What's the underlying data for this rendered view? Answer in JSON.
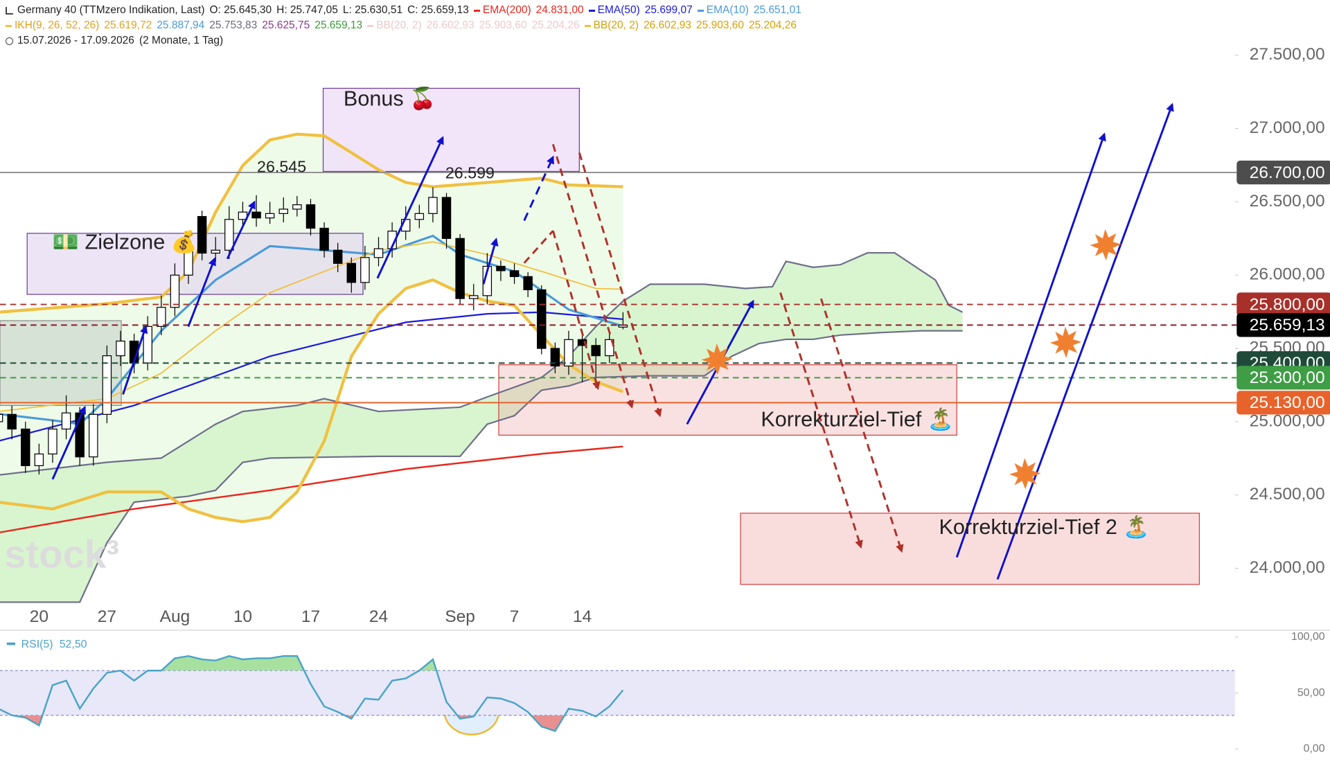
{
  "header": {
    "rows": [
      [
        {
          "text": "Germany 40 (TTMzero Indikation, Last)",
          "color": "#222222"
        },
        {
          "text": "O: 25.645,30",
          "color": "#222222"
        },
        {
          "text": "H: 25.747,05",
          "color": "#222222"
        },
        {
          "text": "L: 25.630,51",
          "color": "#222222"
        },
        {
          "text": "C: 25.659,13",
          "color": "#222222"
        },
        {
          "text": "EMA(200)",
          "color": "#e8281e",
          "marker": "#e8281e"
        },
        {
          "text": "24.831,00",
          "color": "#e8281e"
        },
        {
          "text": "EMA(50)",
          "color": "#1a1adc",
          "marker": "#1a1adc"
        },
        {
          "text": "25.699,07",
          "color": "#1a1adc"
        },
        {
          "text": "EMA(10)",
          "color": "#4a9ad8",
          "marker": "#4a9ad8"
        },
        {
          "text": "25.651,01",
          "color": "#4a9ad8"
        }
      ],
      [
        {
          "text": "IKH(9, 26, 52, 26)",
          "color": "#e0a020",
          "marker": "#f0c040"
        },
        {
          "text": "25.619,72",
          "color": "#e0a020"
        },
        {
          "text": "25.887,94",
          "color": "#4a9ad8"
        },
        {
          "text": "25.753,83",
          "color": "#6a6a80"
        },
        {
          "text": "25.625,75",
          "color": "#8a3a8a"
        },
        {
          "text": "25.659,13",
          "color": "#3a9a3a"
        },
        {
          "text": "BB(20, 2)",
          "color": "#f0c8c8",
          "marker": "#f4d0d0"
        },
        {
          "text": "26.602,93",
          "color": "#f0c8c8"
        },
        {
          "text": "25.903,60",
          "color": "#f0c8c8"
        },
        {
          "text": "25.204,26",
          "color": "#f0c8c8"
        },
        {
          "text": "BB(20, 2)",
          "color": "#d9a000",
          "marker": "#f0c040"
        },
        {
          "text": "26.602,93",
          "color": "#d9a000"
        },
        {
          "text": "25.903,60",
          "color": "#d9a000"
        },
        {
          "text": "25.204,26",
          "color": "#d9a000"
        }
      ],
      [
        {
          "text": "15.07.2026 - 17.09.2026",
          "color": "#222222"
        },
        {
          "text": "(2 Monate, 1 Tag)",
          "color": "#222222"
        }
      ]
    ]
  },
  "annotations": {
    "bonus": "Bonus 🍒",
    "zielzone": "💵 Zielzone 💰",
    "korrektur1": "Korrekturziel-Tief 🏝️",
    "korrektur2": "Korrekturziel-Tief 2 🏝️",
    "peak1": "26.545",
    "peak2": "26.599",
    "watermark": "stock³"
  },
  "chart_data": [
    {
      "type": "candlestick",
      "categories": [
        null,
        null,
        null,
        "20",
        null,
        null,
        null,
        null,
        "27",
        null,
        null,
        null,
        null,
        "Aug",
        null,
        null,
        null,
        null,
        "10",
        null,
        null,
        null,
        null,
        "17",
        null,
        null,
        null,
        null,
        "24",
        null,
        null,
        null,
        null,
        null,
        "Sep",
        null,
        null,
        null,
        "7",
        null,
        null,
        null,
        null,
        "14",
        null,
        null,
        null
      ],
      "open": [
        25000,
        25050,
        24950,
        24700,
        24780,
        24950,
        25060,
        24760,
        25050,
        25450,
        25550,
        25400,
        25650,
        25780,
        26000,
        26400,
        26150,
        26170,
        26380,
        26430,
        26390,
        26420,
        26450,
        26480,
        26320,
        26170,
        26080,
        25950,
        26120,
        26180,
        26300,
        26380,
        26420,
        26530,
        26250,
        25840,
        25860,
        26060,
        26030,
        25990,
        25900,
        25500,
        25380,
        25560,
        25520,
        25450,
        25645.3
      ],
      "high": [
        25120,
        25110,
        25000,
        24850,
        25010,
        25180,
        25100,
        25120,
        25520,
        25620,
        25600,
        25720,
        25860,
        26080,
        26300,
        26440,
        26260,
        26470,
        26500,
        26545,
        26500,
        26530,
        26540,
        26520,
        26360,
        26220,
        26120,
        26200,
        26260,
        26360,
        26470,
        26480,
        26599,
        26560,
        26280,
        25940,
        26150,
        26100,
        26080,
        26020,
        25930,
        25540,
        25620,
        25600,
        25570,
        25620,
        25747.05
      ],
      "low": [
        24930,
        24880,
        24650,
        24640,
        24720,
        24880,
        24700,
        24700,
        24990,
        25380,
        25330,
        25350,
        25590,
        25720,
        25940,
        26100,
        26090,
        26110,
        26320,
        26330,
        26350,
        26360,
        26400,
        26270,
        26120,
        26020,
        25880,
        25900,
        26060,
        26120,
        26240,
        26320,
        26360,
        26180,
        25800,
        25760,
        25800,
        25960,
        25940,
        25850,
        25460,
        25330,
        25320,
        25270,
        25230,
        25400,
        25630.51
      ],
      "close": [
        25050,
        24950,
        24700,
        24780,
        24950,
        25060,
        24760,
        25050,
        25450,
        25550,
        25400,
        25650,
        25780,
        26000,
        26200,
        26150,
        26170,
        26380,
        26430,
        26390,
        26420,
        26450,
        26480,
        26320,
        26170,
        26080,
        25950,
        26120,
        26180,
        26300,
        26380,
        26420,
        26530,
        26250,
        25840,
        25860,
        26060,
        26030,
        25990,
        25900,
        25500,
        25380,
        25560,
        25520,
        25450,
        25560,
        25659.13
      ],
      "up_color": "#ffffff",
      "down_color": "#000000",
      "xlim": [
        0.125,
        91.0625
      ],
      "ylim": [
        23583.5,
        27876
      ],
      "yticks": [
        {
          "value": 24000,
          "label": "24.000,00"
        },
        {
          "value": 24500,
          "label": "24.500,00"
        },
        {
          "value": 25000,
          "label": "25.000,00"
        },
        {
          "value": 25500,
          "label": "25.500,00"
        },
        {
          "value": 26000,
          "label": "26.000,00"
        },
        {
          "value": 26500,
          "label": "26.500,00"
        },
        {
          "value": 27000,
          "label": "27.000,00"
        },
        {
          "value": 27500,
          "label": "27.500,00"
        }
      ],
      "bands": {
        "upper": {
          "x": [
            0,
            8,
            12,
            14,
            16,
            18,
            20,
            22,
            24,
            26,
            28,
            30,
            32,
            36,
            40,
            42,
            46
          ],
          "values": [
            25747,
            25805,
            25851,
            26025,
            26430,
            26748,
            26922,
            26962,
            26950,
            26835,
            26719,
            26632,
            26603,
            26632,
            26661,
            26615,
            26602.93
          ]
        },
        "lower": {
          "x": [
            0,
            4,
            8,
            12,
            14,
            16,
            18,
            20,
            22,
            24,
            26,
            28,
            30,
            32,
            34,
            36,
            38,
            40,
            42,
            44,
            46
          ],
          "values": [
            24451,
            24405,
            24521,
            24521,
            24405,
            24347,
            24318,
            24347,
            24521,
            24868,
            25446,
            25736,
            25909,
            25967,
            25880,
            25823,
            25793,
            25591,
            25389,
            25273,
            25204.26
          ]
        },
        "middle": {
          "x": [
            0,
            8,
            12,
            16,
            20,
            24,
            28,
            32,
            36,
            40,
            44,
            46
          ],
          "values": [
            25070,
            25157,
            25331,
            25620,
            25880,
            26025,
            26169,
            26227,
            26140,
            26025,
            25909,
            25903.6
          ]
        },
        "color": "#f0c040",
        "fill": "#eefbe8"
      },
      "cloud": {
        "span_a": {
          "x": [
            0,
            8,
            12,
            16,
            18,
            22,
            24,
            28,
            34,
            36,
            40,
            42,
            44,
            46,
            48,
            52,
            55,
            57,
            58,
            60,
            62,
            64,
            66,
            69,
            70,
            71
          ],
          "values": [
            24636,
            24723,
            24752,
            24983,
            25070,
            25111,
            25157,
            25070,
            25099,
            25169,
            25302,
            25446,
            25649,
            25822,
            25938,
            25938,
            25909,
            25921,
            26094,
            26053,
            26071,
            26152,
            26152,
            25967,
            25793,
            25747
          ]
        },
        "span_b": {
          "x": [
            0,
            6,
            8,
            10,
            14,
            16,
            18,
            20,
            28,
            34,
            36,
            38,
            40,
            42,
            44,
            48,
            52,
            54,
            56,
            58,
            60,
            62,
            65,
            68,
            71
          ],
          "values": [
            23769,
            23769,
            24174,
            24451,
            24492,
            24532,
            24723,
            24752,
            24764,
            24764,
            24983,
            25041,
            25215,
            25244,
            25302,
            25313,
            25313,
            25446,
            25533,
            25562,
            25562,
            25591,
            25608,
            25620,
            25620
          ]
        },
        "line_color": "#6e6e8a",
        "fill": "#d8f5cf"
      },
      "lines": [
        {
          "color": "#e8281e",
          "width": 2,
          "x": [
            0,
            10,
            20,
            30,
            40,
            46
          ],
          "values": [
            24243,
            24405,
            24532,
            24677,
            24781,
            24831
          ]
        },
        {
          "color": "#1a1adc",
          "width": 1.8,
          "x": [
            0,
            10,
            20,
            30,
            36,
            40,
            46
          ],
          "values": [
            24868,
            25111,
            25446,
            25678,
            25736,
            25747,
            25699.07
          ]
        },
        {
          "color": "#4a9ad8",
          "width": 2.6,
          "x": [
            0,
            4,
            6,
            8,
            12,
            16,
            20,
            24,
            28,
            32,
            34,
            38,
            42,
            46
          ],
          "values": [
            25053,
            25010,
            24984,
            25157,
            25620,
            25967,
            26198,
            26169,
            26140,
            26268,
            26140,
            26025,
            25765,
            25651.01
          ]
        }
      ],
      "levels": [
        {
          "value": 26700,
          "label": "26.700,00",
          "color": "#4d4d4d",
          "line_color": "#8c8c8c",
          "dashed": false
        },
        {
          "value": 25800,
          "label": "25.800,00",
          "color": "#a8302a",
          "line_color": "#a8302a",
          "dashed": true
        },
        {
          "value": 25659.13,
          "label": "25.659,13",
          "color": "#000000",
          "line_color": "#8b1a2b",
          "dashed": true
        },
        {
          "value": 25400,
          "label": "25.400,00",
          "color": "#1f4a3a",
          "line_color": "#1f4a3a",
          "dashed": true
        },
        {
          "value": 25300,
          "label": "25.300,00",
          "color": "#3f9d45",
          "line_color": "#3f9d45",
          "dashed": true
        },
        {
          "value": 25130,
          "label": "25.130,00",
          "color": "#e8632c",
          "line_color": "#e8632c",
          "dashed": false
        }
      ]
    },
    {
      "type": "line",
      "title": "RSI(5)",
      "last_label": "52,50",
      "color": "#4aa3c8",
      "values": [
        36,
        30,
        28,
        21,
        57,
        61,
        36,
        54,
        68,
        70,
        61,
        70,
        70,
        81,
        83,
        80,
        79,
        83,
        80,
        81,
        81,
        83,
        83,
        58,
        38,
        33,
        27,
        45,
        44,
        61,
        63,
        70,
        80,
        42,
        27,
        29,
        46,
        45,
        41,
        33,
        20,
        16,
        36,
        34,
        29,
        38,
        52.5
      ],
      "ylim": [
        0,
        100
      ],
      "yticks": [
        {
          "value": 0,
          "label": "0,00"
        },
        {
          "value": 50,
          "label": "50,00"
        },
        {
          "value": 100,
          "label": "100,00"
        }
      ],
      "bands": [
        30,
        70
      ],
      "band_fill": "#e8e8f8",
      "band_line": "#8080c8",
      "high_fill": "#a8e0a0",
      "low_fill": "#e89090"
    }
  ]
}
